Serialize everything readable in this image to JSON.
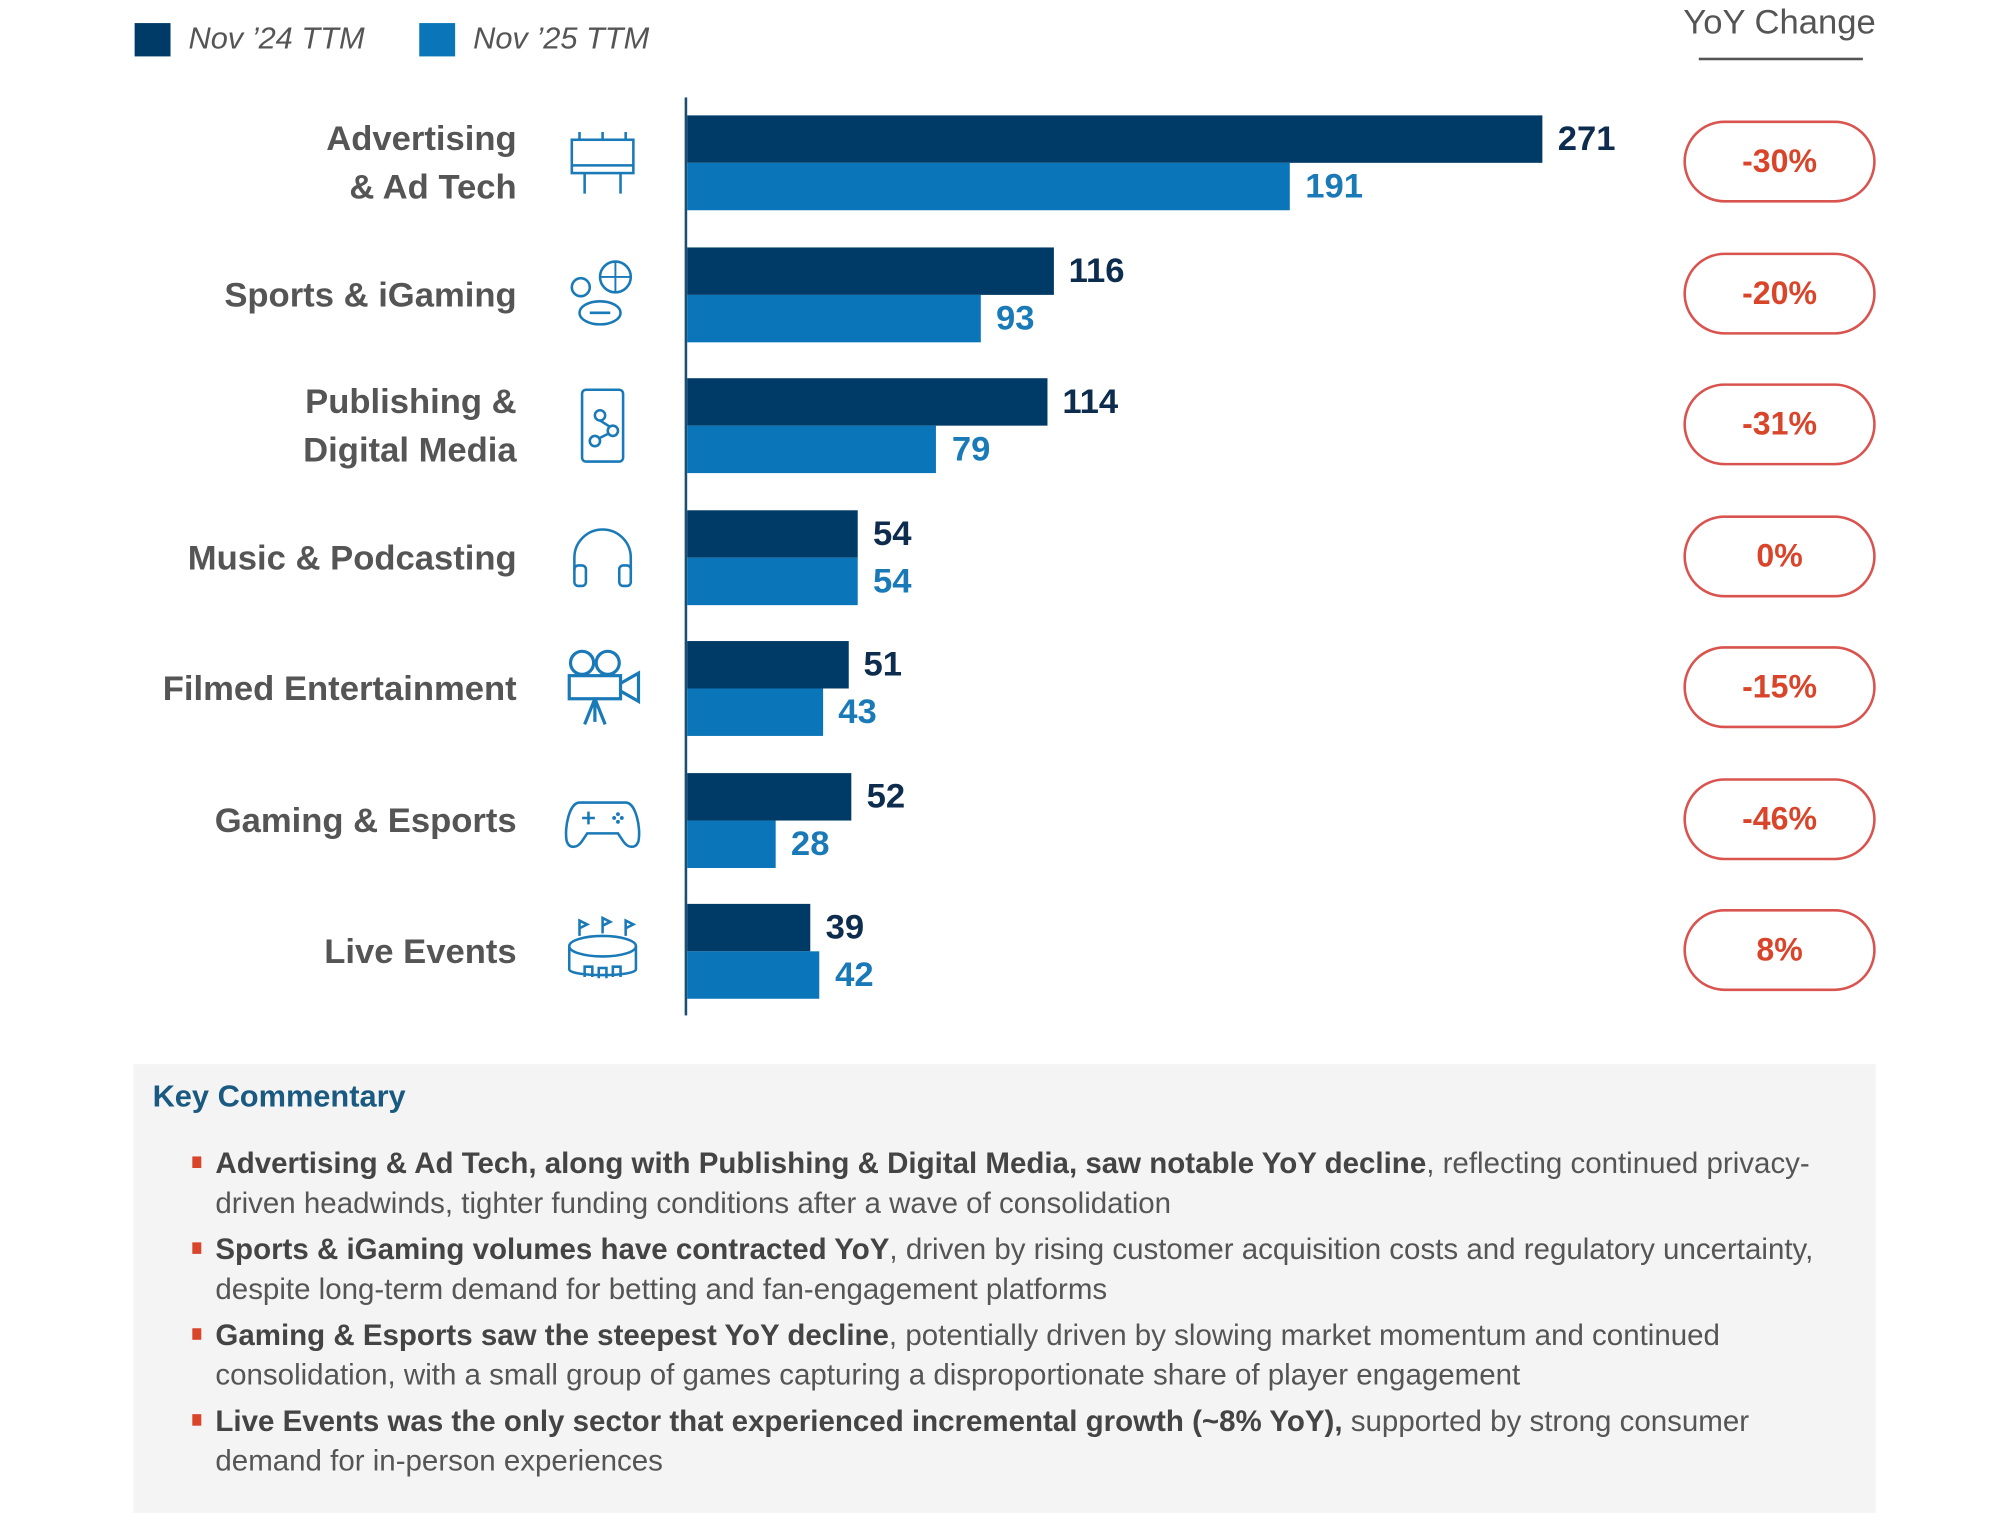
{
  "chart_data": {
    "type": "bar",
    "orientation": "horizontal",
    "categories": [
      "Advertising & Ad Tech",
      "Sports & iGaming",
      "Publishing & Digital Media",
      "Music & Podcasting",
      "Filmed Entertainment",
      "Gaming & Esports",
      "Live Events"
    ],
    "category_lines": [
      [
        "Advertising",
        "& Ad Tech"
      ],
      [
        "Sports & iGaming"
      ],
      [
        "Publishing &",
        "Digital Media"
      ],
      [
        "Music & Podcasting"
      ],
      [
        "Filmed Entertainment"
      ],
      [
        "Gaming & Esports"
      ],
      [
        "Live Events"
      ]
    ],
    "icons": [
      "billboard-icon",
      "sports-balls-icon",
      "smartphone-network-icon",
      "headphones-icon",
      "film-camera-icon",
      "game-controller-icon",
      "stadium-icon"
    ],
    "series": [
      {
        "name": "Nov ’24 TTM",
        "color": "#003a66",
        "label_color": "#0d2c4e",
        "values": [
          271,
          116,
          114,
          54,
          51,
          52,
          39
        ]
      },
      {
        "name": "Nov ’25 TTM",
        "color": "#0a75b8",
        "label_color": "#1a7ab8",
        "values": [
          191,
          93,
          79,
          54,
          43,
          28,
          42
        ]
      }
    ],
    "yoy_title": "YoY Change",
    "yoy_change": [
      "-30%",
      "-20%",
      "-31%",
      "0%",
      "-15%",
      "-46%",
      "8%"
    ],
    "xlim": [
      0,
      271
    ],
    "grid": false,
    "legend_position": "top-left"
  },
  "commentary": {
    "title": "Key Commentary",
    "bullets": [
      {
        "bold": "Advertising & Ad Tech, along with Publishing & Digital Media, saw notable YoY decline",
        "rest": ", reflecting continued privacy-driven headwinds, tighter funding conditions after a wave of consolidation"
      },
      {
        "bold": "Sports & iGaming volumes have contracted YoY",
        "rest": ", driven by rising customer acquisition costs and regulatory uncertainty, despite long-term demand for betting and fan-engagement platforms"
      },
      {
        "bold": "Gaming & Esports saw the steepest YoY decline",
        "rest": ", potentially driven by slowing market momentum and continued consolidation, with a small group of games capturing a disproportionate share of player engagement"
      },
      {
        "bold": "Live Events was the only sector that experienced incremental growth (~8% YoY),",
        "rest": " supported by strong consumer demand for in-person experiences"
      }
    ]
  }
}
